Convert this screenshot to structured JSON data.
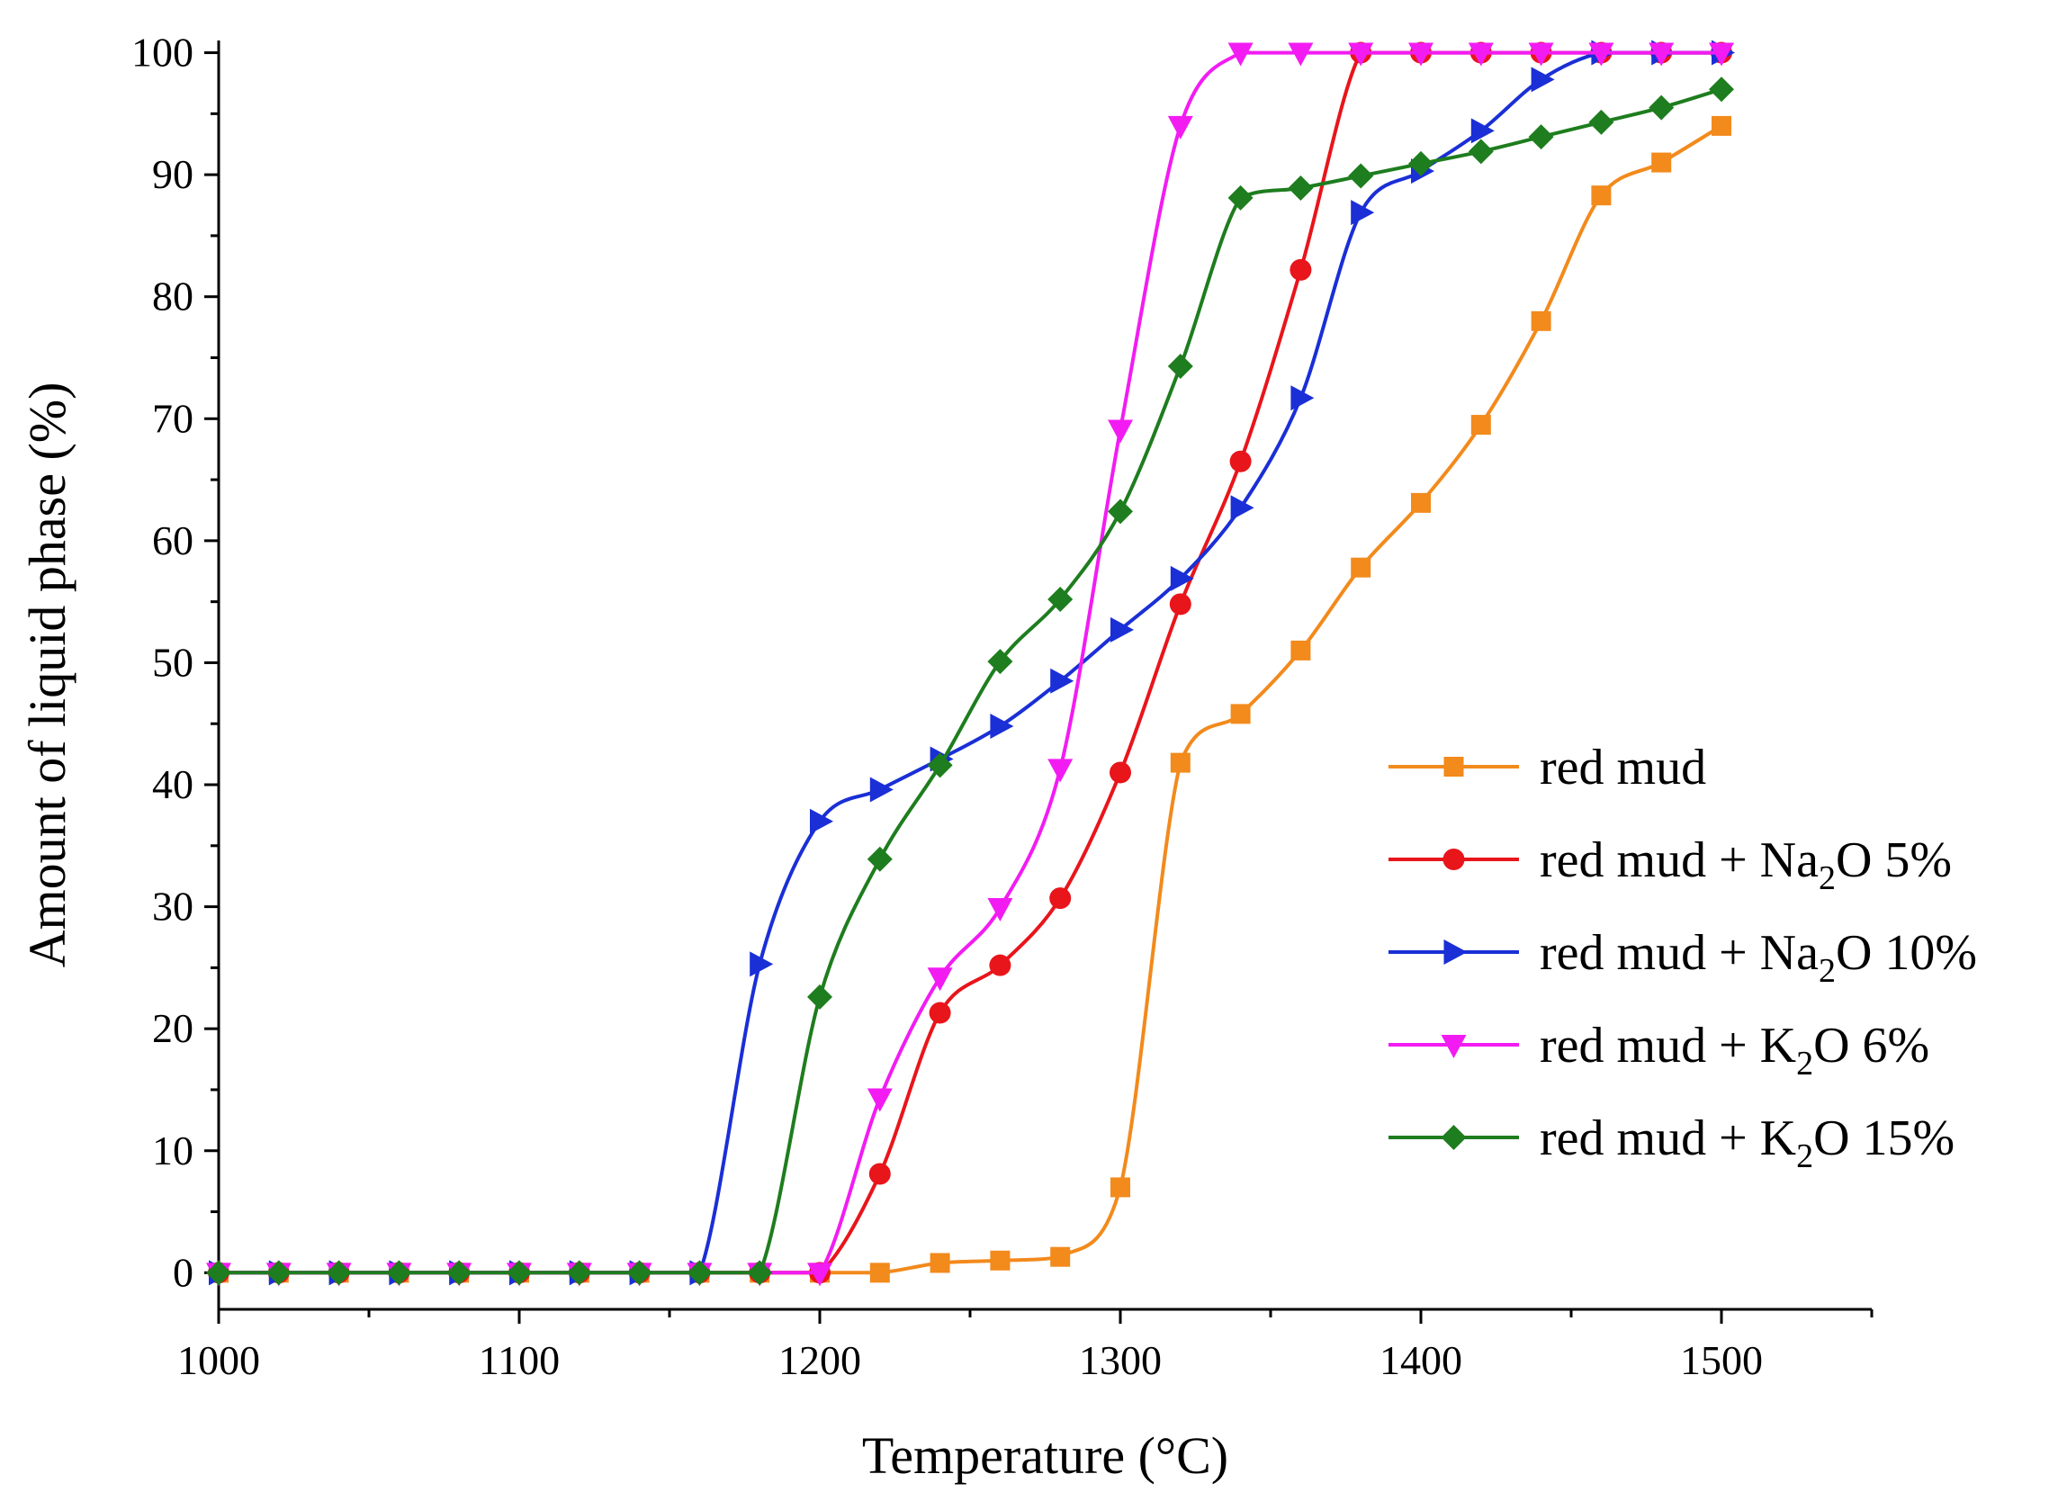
{
  "chart_data": {
    "type": "line",
    "title": "",
    "xlabel": "Temperature (°C)",
    "ylabel": "Amount of liquid phase (%)",
    "xlim": [
      1000,
      1550
    ],
    "ylim": [
      -3,
      101
    ],
    "x_ticks": [
      1000,
      1100,
      1200,
      1300,
      1400,
      1500
    ],
    "x_tick_labels": [
      "1000",
      "1100",
      "1200",
      "1300",
      "1400",
      "1500"
    ],
    "y_ticks": [
      0,
      10,
      20,
      30,
      40,
      50,
      60,
      70,
      80,
      90,
      100
    ],
    "y_tick_labels": [
      "0",
      "10",
      "20",
      "30",
      "40",
      "50",
      "60",
      "70",
      "80",
      "90",
      "100"
    ],
    "grid": false,
    "legend_position": "right-middle",
    "series": [
      {
        "name": "red mud",
        "legend": {
          "pre": "red mud",
          "sub": "",
          "post": ""
        },
        "color": "#f28a1c",
        "marker": "square",
        "x": [
          1000,
          1020,
          1040,
          1060,
          1080,
          1100,
          1120,
          1140,
          1160,
          1180,
          1200,
          1220,
          1240,
          1260,
          1280,
          1300,
          1320,
          1340,
          1360,
          1380,
          1400,
          1420,
          1440,
          1460,
          1480,
          1500
        ],
        "values": [
          0,
          0,
          0,
          0,
          0,
          0,
          0,
          0,
          0,
          0,
          0,
          0,
          0.8,
          1.0,
          1.3,
          7,
          41.8,
          45.8,
          51,
          57.8,
          63.1,
          69.5,
          78,
          88.3,
          91,
          94
        ]
      },
      {
        "name": "red mud + Na2O 5%",
        "legend": {
          "pre": "red mud + Na",
          "sub": "2",
          "post": "O 5%"
        },
        "color": "#e8151b",
        "marker": "circle",
        "x": [
          1000,
          1020,
          1040,
          1060,
          1080,
          1100,
          1120,
          1140,
          1160,
          1180,
          1200,
          1220,
          1240,
          1260,
          1280,
          1300,
          1320,
          1340,
          1360,
          1380,
          1400,
          1420,
          1440,
          1460,
          1480,
          1500
        ],
        "values": [
          0,
          0,
          0,
          0,
          0,
          0,
          0,
          0,
          0,
          0,
          0,
          8.1,
          21.3,
          25.2,
          30.7,
          41,
          54.8,
          66.5,
          82.2,
          100,
          100,
          100,
          100,
          100,
          100,
          100
        ]
      },
      {
        "name": "red mud + Na2O 10%",
        "legend": {
          "pre": "red mud + Na",
          "sub": "2",
          "post": "O 10%"
        },
        "color": "#1a2fd6",
        "marker": "triangle-right",
        "x": [
          1000,
          1020,
          1040,
          1060,
          1080,
          1100,
          1120,
          1140,
          1160,
          1180,
          1200,
          1220,
          1240,
          1260,
          1280,
          1300,
          1320,
          1340,
          1360,
          1380,
          1400,
          1420,
          1440,
          1460,
          1480,
          1500
        ],
        "values": [
          0,
          0,
          0,
          0,
          0,
          0,
          0,
          0,
          0,
          25.3,
          37,
          39.6,
          42.1,
          44.8,
          48.5,
          52.7,
          56.9,
          62.7,
          71.7,
          86.9,
          90.3,
          93.6,
          97.8,
          100,
          100,
          100
        ]
      },
      {
        "name": "red mud + K2O 6%",
        "legend": {
          "pre": "red mud + K",
          "sub": "2",
          "post": "O 6%"
        },
        "color": "#f21cf2",
        "marker": "triangle-down",
        "x": [
          1000,
          1020,
          1040,
          1060,
          1080,
          1100,
          1120,
          1140,
          1160,
          1180,
          1200,
          1220,
          1240,
          1260,
          1280,
          1300,
          1320,
          1340,
          1360,
          1380,
          1400,
          1420,
          1440,
          1460,
          1480,
          1500
        ],
        "values": [
          0,
          0,
          0,
          0,
          0,
          0,
          0,
          0,
          0,
          0,
          0,
          14.3,
          24.2,
          29.9,
          41.3,
          69.1,
          94,
          100,
          100,
          100,
          100,
          100,
          100,
          100,
          100,
          100
        ]
      },
      {
        "name": "red mud + K2O 15%",
        "legend": {
          "pre": "red mud + K",
          "sub": "2",
          "post": "O 15%"
        },
        "color": "#1e7d1e",
        "marker": "diamond",
        "x": [
          1000,
          1020,
          1040,
          1060,
          1080,
          1100,
          1120,
          1140,
          1160,
          1180,
          1200,
          1220,
          1240,
          1260,
          1280,
          1300,
          1320,
          1340,
          1360,
          1380,
          1400,
          1420,
          1440,
          1460,
          1480,
          1500
        ],
        "values": [
          0,
          0,
          0,
          0,
          0,
          0,
          0,
          0,
          0,
          0,
          22.6,
          33.9,
          41.6,
          50.1,
          55.2,
          62.4,
          74.3,
          88.1,
          88.9,
          89.9,
          90.9,
          91.9,
          93.1,
          94.3,
          95.5,
          97
        ]
      }
    ]
  }
}
